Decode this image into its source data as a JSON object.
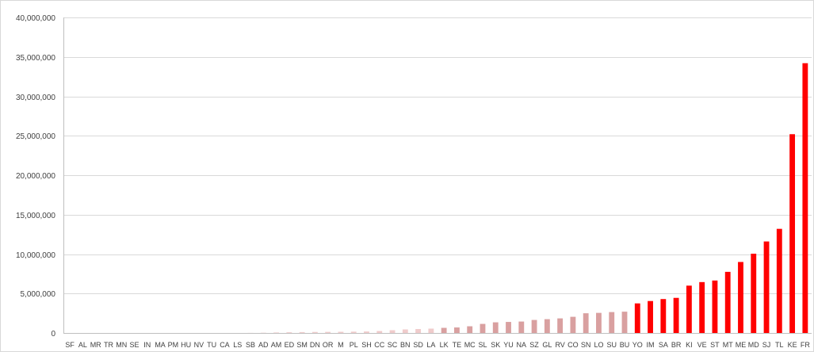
{
  "chart_data": {
    "type": "bar",
    "title": "",
    "xlabel": "",
    "ylabel": "",
    "ylim": [
      0,
      40000000
    ],
    "yticks": [
      0,
      5000000,
      10000000,
      15000000,
      20000000,
      25000000,
      30000000,
      35000000,
      40000000
    ],
    "ytick_labels": [
      "0",
      "5,000,000",
      "10,000,000",
      "15,000,000",
      "20,000,000",
      "25,000,000",
      "30,000,000",
      "35,000,000",
      "40,000,000"
    ],
    "grid": "horizontal",
    "legend": "none",
    "colors": {
      "high": "#ff0000",
      "mid": "#d9a0a0",
      "low": "#f0cccc",
      "axis": "#bfbfbf",
      "grid": "#d9d9d9"
    },
    "categories": [
      "SF",
      "AL",
      "MR",
      "TR",
      "MN",
      "SE",
      "IN",
      "MA",
      "PM",
      "HU",
      "NV",
      "TU",
      "CA",
      "LS",
      "SB",
      "AD",
      "AM",
      "ED",
      "SM",
      "DN",
      "OR",
      "M",
      "PL",
      "SH",
      "CC",
      "SC",
      "BN",
      "SD",
      "LA",
      "LK",
      "TE",
      "MC",
      "SL",
      "SK",
      "YU",
      "NA",
      "SZ",
      "GL",
      "RV",
      "CO",
      "SN",
      "LO",
      "SU",
      "BU",
      "YO",
      "IM",
      "SA",
      "BR",
      "KI",
      "VE",
      "ST",
      "MT",
      "ME",
      "MD",
      "SJ",
      "TL",
      "KE",
      "FR"
    ],
    "values": [
      0,
      0,
      0,
      0,
      0,
      0,
      0,
      0,
      0,
      0,
      0,
      0,
      0,
      0,
      10000,
      30000,
      60000,
      90000,
      110000,
      130000,
      140000,
      150000,
      170000,
      190000,
      250000,
      350000,
      450000,
      500000,
      550000,
      650000,
      700000,
      850000,
      1150000,
      1350000,
      1400000,
      1450000,
      1650000,
      1750000,
      1850000,
      2050000,
      2500000,
      2550000,
      2650000,
      2700000,
      3750000,
      4050000,
      4300000,
      4450000,
      6000000,
      6450000,
      6650000,
      7750000,
      9000000,
      10050000,
      11600000,
      13200000,
      25200000,
      34200000
    ],
    "bar_tiers": [
      "low",
      "low",
      "low",
      "low",
      "low",
      "low",
      "low",
      "low",
      "low",
      "low",
      "low",
      "low",
      "low",
      "low",
      "low",
      "low",
      "low",
      "low",
      "low",
      "low",
      "low",
      "low",
      "low",
      "low",
      "low",
      "low",
      "low",
      "low",
      "low",
      "mid",
      "mid",
      "mid",
      "mid",
      "mid",
      "mid",
      "mid",
      "mid",
      "mid",
      "mid",
      "mid",
      "mid",
      "mid",
      "mid",
      "mid",
      "high",
      "high",
      "high",
      "high",
      "high",
      "high",
      "high",
      "high",
      "high",
      "high",
      "high",
      "high",
      "high",
      "high"
    ]
  }
}
